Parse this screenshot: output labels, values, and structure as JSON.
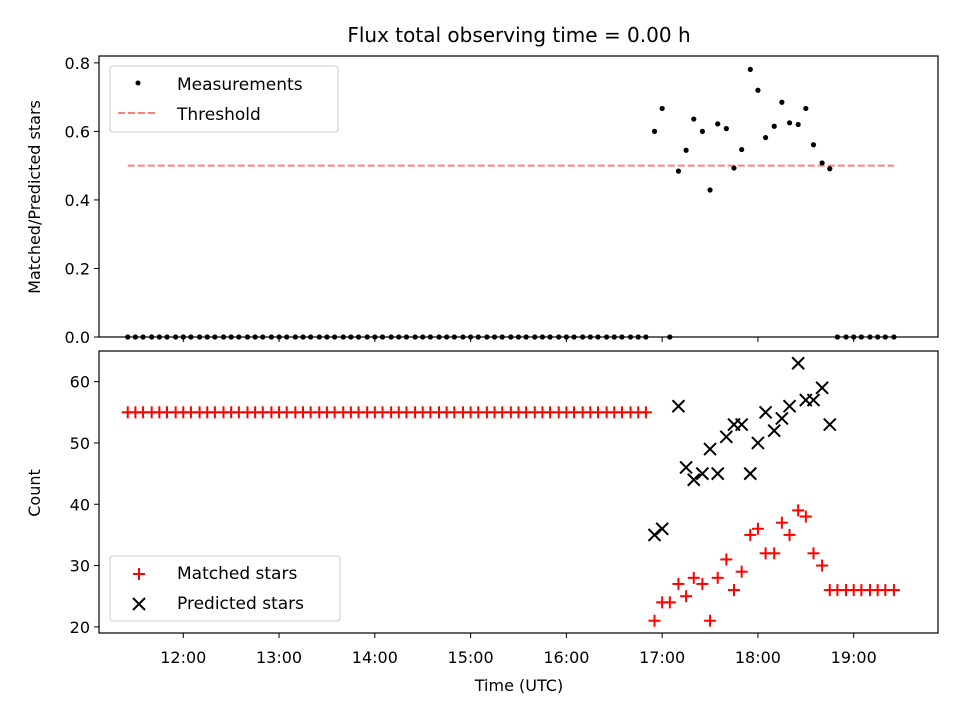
{
  "chart_data": [
    {
      "type": "scatter",
      "title": "Flux total observing time = 0.00 h",
      "xlabel": "",
      "ylabel": "Matched/Predicted stars",
      "x_unit": "hours UTC",
      "xlim": [
        11.12,
        19.88
      ],
      "ylim": [
        0.0,
        0.82
      ],
      "yticks": [
        0.0,
        0.2,
        0.4,
        0.6,
        0.8
      ],
      "ytick_labels": [
        "0.0",
        "0.2",
        "0.4",
        "0.6",
        "0.8"
      ],
      "legend": {
        "position": "top-left",
        "entries": [
          "Measurements",
          "Threshold"
        ]
      },
      "series": [
        {
          "name": "Measurements",
          "marker": "dot",
          "color": "#000000",
          "x": [
            11.42,
            11.5,
            11.58,
            11.67,
            11.75,
            11.83,
            11.92,
            12.0,
            12.08,
            12.17,
            12.25,
            12.33,
            12.42,
            12.5,
            12.58,
            12.67,
            12.75,
            12.83,
            12.92,
            13.0,
            13.08,
            13.17,
            13.25,
            13.33,
            13.42,
            13.5,
            13.58,
            13.67,
            13.75,
            13.83,
            13.92,
            14.0,
            14.08,
            14.17,
            14.25,
            14.33,
            14.42,
            14.5,
            14.58,
            14.67,
            14.75,
            14.83,
            14.92,
            15.0,
            15.08,
            15.17,
            15.25,
            15.33,
            15.42,
            15.5,
            15.58,
            15.67,
            15.75,
            15.83,
            15.92,
            16.0,
            16.08,
            16.17,
            16.25,
            16.33,
            16.42,
            16.5,
            16.58,
            16.67,
            16.75,
            16.83,
            16.92,
            17.0,
            17.08,
            17.17,
            17.25,
            17.33,
            17.42,
            17.5,
            17.58,
            17.67,
            17.75,
            17.83,
            17.92,
            18.0,
            18.08,
            18.17,
            18.25,
            18.33,
            18.42,
            18.5,
            18.58,
            18.67,
            18.75,
            18.83,
            18.92,
            19.0,
            19.08,
            19.17,
            19.25,
            19.33,
            19.42
          ],
          "y": [
            0,
            0,
            0,
            0,
            0,
            0,
            0,
            0,
            0,
            0,
            0,
            0,
            0,
            0,
            0,
            0,
            0,
            0,
            0,
            0,
            0,
            0,
            0,
            0,
            0,
            0,
            0,
            0,
            0,
            0,
            0,
            0,
            0,
            0,
            0,
            0,
            0,
            0,
            0,
            0,
            0,
            0,
            0,
            0,
            0,
            0,
            0,
            0,
            0,
            0,
            0,
            0,
            0,
            0,
            0,
            0,
            0,
            0,
            0,
            0,
            0,
            0,
            0,
            0,
            0,
            0.0,
            0.6,
            0.667,
            0.0,
            0.484,
            0.545,
            0.636,
            0.6,
            0.429,
            0.622,
            0.608,
            0.493,
            0.547,
            0.781,
            0.72,
            0.582,
            0.615,
            0.685,
            0.625,
            0.62,
            0.667,
            0.561,
            0.508,
            0.491,
            0,
            0,
            0,
            0,
            0,
            0,
            0,
            0
          ]
        },
        {
          "name": "Threshold",
          "marker": "dashed-line",
          "color": "#ff7f7f",
          "x": [
            11.42,
            19.42
          ],
          "y": [
            0.5,
            0.5
          ]
        }
      ]
    },
    {
      "type": "scatter",
      "title": "",
      "xlabel": "Time (UTC)",
      "ylabel": "Count",
      "x_unit": "hours UTC",
      "xlim": [
        11.12,
        19.88
      ],
      "ylim": [
        19,
        65
      ],
      "xticks": [
        12,
        13,
        14,
        15,
        16,
        17,
        18,
        19
      ],
      "xtick_labels": [
        "12:00",
        "13:00",
        "14:00",
        "15:00",
        "16:00",
        "17:00",
        "18:00",
        "19:00"
      ],
      "yticks": [
        20,
        30,
        40,
        50,
        60
      ],
      "ytick_labels": [
        "20",
        "30",
        "40",
        "50",
        "60"
      ],
      "legend": {
        "position": "bottom-left",
        "entries": [
          "Matched stars",
          "Predicted stars"
        ]
      },
      "series": [
        {
          "name": "Matched stars",
          "marker": "plus",
          "color": "#ff0000",
          "x": [
            11.42,
            11.5,
            11.58,
            11.67,
            11.75,
            11.83,
            11.92,
            12.0,
            12.08,
            12.17,
            12.25,
            12.33,
            12.42,
            12.5,
            12.58,
            12.67,
            12.75,
            12.83,
            12.92,
            13.0,
            13.08,
            13.17,
            13.25,
            13.33,
            13.42,
            13.5,
            13.58,
            13.67,
            13.75,
            13.83,
            13.92,
            14.0,
            14.08,
            14.17,
            14.25,
            14.33,
            14.42,
            14.5,
            14.58,
            14.67,
            14.75,
            14.83,
            14.92,
            15.0,
            15.08,
            15.17,
            15.25,
            15.33,
            15.42,
            15.5,
            15.58,
            15.67,
            15.75,
            15.83,
            15.92,
            16.0,
            16.08,
            16.17,
            16.25,
            16.33,
            16.42,
            16.5,
            16.58,
            16.67,
            16.75,
            16.83,
            16.92,
            17.0,
            17.08,
            17.17,
            17.25,
            17.33,
            17.42,
            17.5,
            17.58,
            17.67,
            17.75,
            17.83,
            17.92,
            18.0,
            18.08,
            18.17,
            18.25,
            18.33,
            18.42,
            18.5,
            18.58,
            18.67,
            18.75,
            18.83,
            18.92,
            19.0,
            19.08,
            19.17,
            19.25,
            19.33,
            19.42
          ],
          "y": [
            55,
            55,
            55,
            55,
            55,
            55,
            55,
            55,
            55,
            55,
            55,
            55,
            55,
            55,
            55,
            55,
            55,
            55,
            55,
            55,
            55,
            55,
            55,
            55,
            55,
            55,
            55,
            55,
            55,
            55,
            55,
            55,
            55,
            55,
            55,
            55,
            55,
            55,
            55,
            55,
            55,
            55,
            55,
            55,
            55,
            55,
            55,
            55,
            55,
            55,
            55,
            55,
            55,
            55,
            55,
            55,
            55,
            55,
            55,
            55,
            55,
            55,
            55,
            55,
            55,
            55,
            21,
            24,
            24,
            27,
            25,
            28,
            27,
            21,
            28,
            31,
            26,
            29,
            35,
            36,
            32,
            32,
            37,
            35,
            39,
            38,
            32,
            30,
            26,
            26,
            26,
            26,
            26,
            26,
            26,
            26,
            26
          ]
        },
        {
          "name": "Predicted stars",
          "marker": "x",
          "color": "#000000",
          "x": [
            16.92,
            17.0,
            17.17,
            17.25,
            17.33,
            17.42,
            17.5,
            17.58,
            17.67,
            17.75,
            17.83,
            17.92,
            18.0,
            18.08,
            18.17,
            18.25,
            18.33,
            18.42,
            18.5,
            18.58,
            18.67,
            18.75
          ],
          "y": [
            35,
            36,
            56,
            46,
            44,
            45,
            49,
            45,
            51,
            53,
            53,
            45,
            50,
            55,
            52,
            54,
            56,
            63,
            57,
            57,
            59,
            53
          ]
        }
      ]
    }
  ]
}
